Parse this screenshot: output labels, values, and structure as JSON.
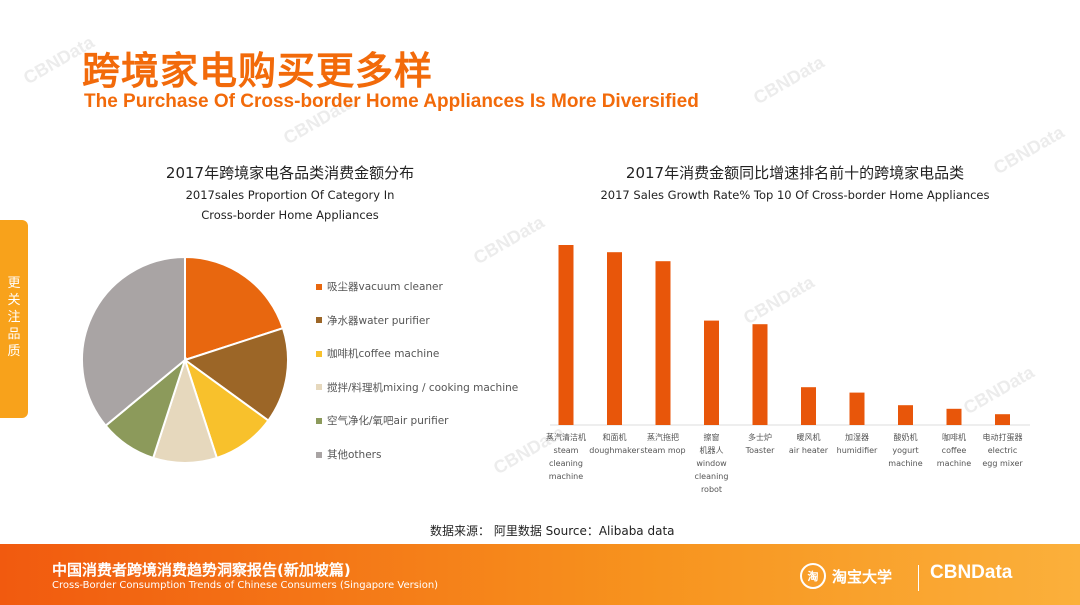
{
  "header": {
    "title_cn": "跨境家电购买更多样",
    "title_en": "The Purchase Of Cross-border Home Appliances Is More Diversified"
  },
  "side_tab": {
    "label": "更关注品质"
  },
  "watermark": "CBNData",
  "colors": {
    "accent": "#f26a0a",
    "bar": "#e8560a"
  },
  "chart_data": [
    {
      "type": "pie",
      "title": "2017年跨境家电各品类消费金额分布",
      "subtitle": [
        "2017sales Proportion Of Category In",
        "Cross-border Home Appliances"
      ],
      "legend_position": "right",
      "slices": [
        {
          "label": "吸尘器vacuum cleaner",
          "value": 20,
          "color": "#e8670f"
        },
        {
          "label": "净水器water purifier",
          "value": 15,
          "color": "#9c6627"
        },
        {
          "label": "咖啡机coffee machine",
          "value": 10,
          "color": "#f8c12c"
        },
        {
          "label": "搅拌/料理机mixing / cooking machine",
          "value": 10,
          "color": "#e6d8bd"
        },
        {
          "label": "空气净化/氧吧air purifier",
          "value": 9,
          "color": "#8c9a5b"
        },
        {
          "label": "其他others",
          "value": 36,
          "color": "#a9a4a4"
        }
      ]
    },
    {
      "type": "bar",
      "title": "2017年消费金额同比增速排名前十的跨境家电品类",
      "subtitle": "2017 Sales Growth Rate% Top 10 Of Cross-border Home Appliances",
      "categories": [
        [
          "蒸汽清洁机",
          "steam",
          "cleaning",
          "machine"
        ],
        [
          "和面机",
          "doughmaker"
        ],
        [
          "蒸汽拖把",
          "steam  mop"
        ],
        [
          "擦窗",
          "机器人",
          "window",
          "cleaning",
          "robot"
        ],
        [
          "多士炉",
          "Toaster"
        ],
        [
          "暖风机",
          "air heater"
        ],
        [
          "加湿器",
          "humidifier"
        ],
        [
          "酸奶机",
          "yogurt",
          "machine"
        ],
        [
          "咖啡机",
          "coffee",
          "machine"
        ],
        [
          "电动打蛋器",
          "electric",
          "egg mixer"
        ]
      ],
      "values": [
        100,
        96,
        91,
        58,
        56,
        21,
        18,
        11,
        9,
        6
      ],
      "ylim": [
        0,
        100
      ],
      "grid": false
    }
  ],
  "source": "数据来源：  阿里数据  Source：Alibaba data",
  "footer": {
    "title_cn": "中国消费者跨境消费趋势洞察报告(新加坡篇)",
    "title_en": "Cross-Border Consumption Trends of Chinese Consumers  (Singapore Version)",
    "taobao_icon": "淘",
    "taobao": "淘宝大学",
    "cbndata": "CBNData"
  }
}
